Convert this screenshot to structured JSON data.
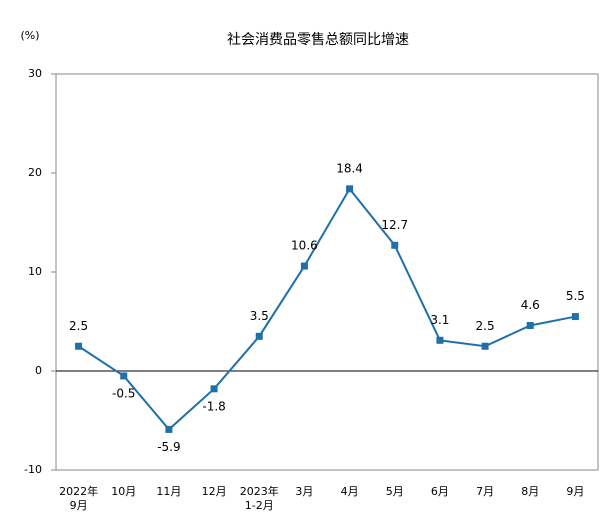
{
  "chart_data": {
    "type": "line",
    "title": "社会消费品零售总额同比增速",
    "unit_label": "(%)",
    "categories": [
      "2022年\n9月",
      "10月",
      "11月",
      "12月",
      "2023年\n1-2月",
      "3月",
      "4月",
      "5月",
      "6月",
      "7月",
      "8月",
      "9月"
    ],
    "series": [
      {
        "name": "社会消费品零售总额同比增速",
        "color": "#1f70a8",
        "values": [
          2.5,
          -0.5,
          -5.9,
          -1.8,
          3.5,
          10.6,
          18.4,
          12.7,
          3.1,
          2.5,
          4.6,
          5.5
        ]
      }
    ],
    "ylim": [
      -10,
      30
    ],
    "yticks": [
      -10,
      0,
      10,
      20,
      30
    ]
  }
}
